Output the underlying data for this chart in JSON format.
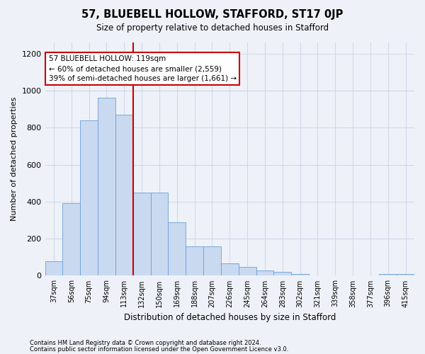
{
  "title": "57, BLUEBELL HOLLOW, STAFFORD, ST17 0JP",
  "subtitle": "Size of property relative to detached houses in Stafford",
  "xlabel": "Distribution of detached houses by size in Stafford",
  "ylabel": "Number of detached properties",
  "footnote1": "Contains HM Land Registry data © Crown copyright and database right 2024.",
  "footnote2": "Contains public sector information licensed under the Open Government Licence v3.0.",
  "annotation_line1": "57 BLUEBELL HOLLOW: 119sqm",
  "annotation_line2": "← 60% of detached houses are smaller (2,559)",
  "annotation_line3": "39% of semi-detached houses are larger (1,661) →",
  "bar_color": "#c9d9f0",
  "bar_edge_color": "#6a9fd8",
  "grid_color": "#d0d8e8",
  "vline_color": "#cc0000",
  "annotation_box_color": "#ffffff",
  "annotation_box_edge": "#cc0000",
  "categories": [
    "37sqm",
    "56sqm",
    "75sqm",
    "94sqm",
    "113sqm",
    "132sqm",
    "150sqm",
    "169sqm",
    "188sqm",
    "207sqm",
    "226sqm",
    "245sqm",
    "264sqm",
    "283sqm",
    "302sqm",
    "321sqm",
    "339sqm",
    "358sqm",
    "377sqm",
    "396sqm",
    "415sqm"
  ],
  "values": [
    80,
    390,
    840,
    960,
    870,
    450,
    450,
    290,
    160,
    160,
    65,
    48,
    30,
    22,
    10,
    3,
    0,
    0,
    0,
    8,
    8
  ],
  "ylim": [
    0,
    1260
  ],
  "yticks": [
    0,
    200,
    400,
    600,
    800,
    1000,
    1200
  ],
  "vline_x_index": 4.5,
  "background_color": "#eef2f8"
}
